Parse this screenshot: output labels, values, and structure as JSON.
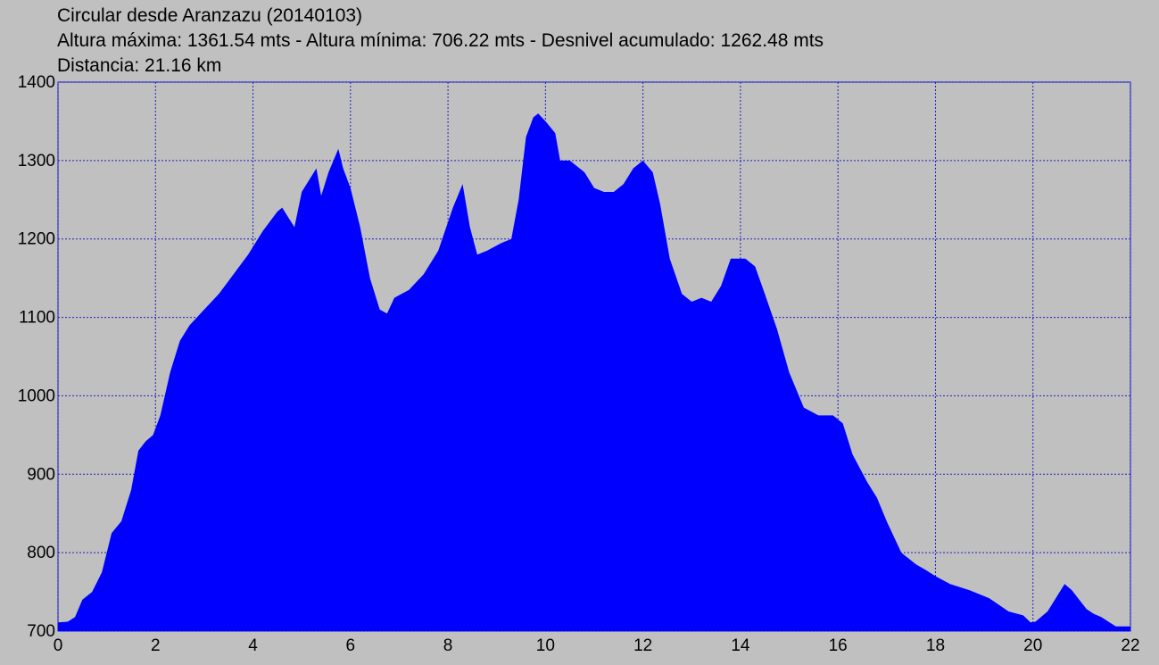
{
  "header": {
    "line1": "Circular desde Aranzazu (20140103)",
    "line2": "Altura máxima: 1361.54 mts - Altura mínima: 706.22 mts - Desnivel acumulado: 1262.48 mts",
    "line3": "Distancia: 21.16 km"
  },
  "colors": {
    "background": "#c0c0c0",
    "fill": "#0000ff",
    "grid": "#2020c0",
    "axis": "#0000cc"
  },
  "chart_data": {
    "type": "area",
    "title": "Circular desde Aranzazu (20140103)",
    "xlabel": "",
    "ylabel": "",
    "xlim": [
      0,
      22
    ],
    "ylim": [
      700,
      1400
    ],
    "grid": true,
    "x_ticks": [
      "0",
      "2",
      "4",
      "6",
      "8",
      "10",
      "12",
      "14",
      "16",
      "18",
      "20",
      "22"
    ],
    "y_ticks": [
      "700",
      "800",
      "900",
      "1000",
      "1100",
      "1200",
      "1300",
      "1400"
    ],
    "series": [
      {
        "x": [
          0,
          0.2,
          0.35,
          0.5,
          0.7,
          0.9,
          1.1,
          1.3,
          1.5,
          1.65,
          1.8,
          1.95,
          2.1,
          2.3,
          2.5,
          2.7,
          3.0,
          3.3,
          3.6,
          3.9,
          4.2,
          4.5,
          4.6,
          4.75,
          4.85,
          5.0,
          5.15,
          5.3,
          5.4,
          5.55,
          5.75,
          5.85,
          6.0,
          6.2,
          6.4,
          6.6,
          6.75,
          6.9,
          7.2,
          7.5,
          7.8,
          8.1,
          8.3,
          8.45,
          8.6,
          8.8,
          9.1,
          9.3,
          9.45,
          9.6,
          9.75,
          9.85,
          10.0,
          10.2,
          10.3,
          10.5,
          10.8,
          11.0,
          11.2,
          11.4,
          11.6,
          11.8,
          12.0,
          12.2,
          12.35,
          12.55,
          12.8,
          13.0,
          13.2,
          13.4,
          13.6,
          13.8,
          13.9,
          14.1,
          14.3,
          14.5,
          14.75,
          15.0,
          15.3,
          15.6,
          15.9,
          16.1,
          16.3,
          16.6,
          16.8,
          17.0,
          17.3,
          17.6,
          17.8,
          18.0,
          18.3,
          18.7,
          19.1,
          19.5,
          19.8,
          19.95,
          20.05,
          20.3,
          20.5,
          20.65,
          20.8,
          20.95,
          21.1,
          21.25,
          21.4,
          21.55,
          21.7,
          22.0
        ],
        "values": [
          711,
          712,
          718,
          740,
          750,
          775,
          825,
          840,
          880,
          930,
          942,
          950,
          975,
          1030,
          1070,
          1090,
          1110,
          1130,
          1155,
          1180,
          1210,
          1235,
          1240,
          1225,
          1215,
          1260,
          1275,
          1290,
          1255,
          1285,
          1315,
          1290,
          1265,
          1215,
          1150,
          1110,
          1105,
          1125,
          1135,
          1155,
          1185,
          1240,
          1270,
          1215,
          1180,
          1185,
          1195,
          1200,
          1250,
          1330,
          1355,
          1360,
          1350,
          1335,
          1300,
          1300,
          1285,
          1265,
          1260,
          1260,
          1270,
          1290,
          1300,
          1285,
          1245,
          1175,
          1130,
          1120,
          1125,
          1120,
          1140,
          1175,
          1175,
          1175,
          1165,
          1130,
          1085,
          1030,
          985,
          975,
          975,
          965,
          925,
          890,
          870,
          840,
          800,
          785,
          778,
          770,
          760,
          752,
          742,
          725,
          720,
          711,
          712,
          725,
          745,
          760,
          752,
          740,
          728,
          722,
          718,
          712,
          706,
          706
        ]
      }
    ]
  }
}
